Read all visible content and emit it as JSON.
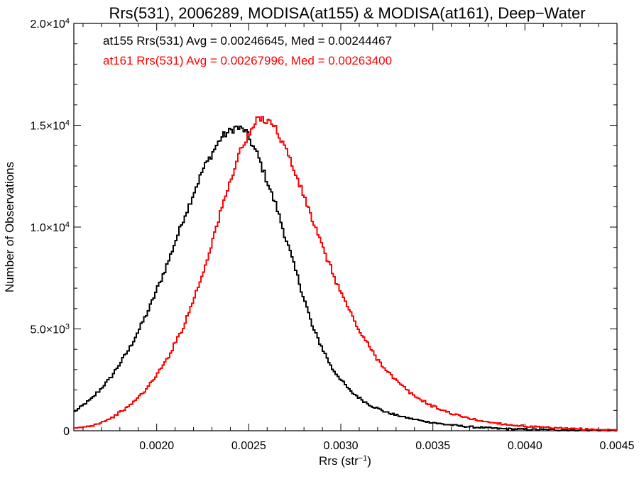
{
  "chart_data": {
    "type": "line",
    "title": "Rrs(531), 2006289, MODISA(at155) & MODISA(at161), Deep−Water",
    "xlabel_base": "Rrs (str",
    "xlabel_sup": "−1",
    "xlabel_close": ")",
    "ylabel": "Number of Observations",
    "xlim": [
      0.00155,
      0.0045
    ],
    "ylim": [
      0,
      20000
    ],
    "xticks": [
      {
        "value": 0.002,
        "label": "0.0020"
      },
      {
        "value": 0.0025,
        "label": "0.0025"
      },
      {
        "value": 0.003,
        "label": "0.0030"
      },
      {
        "value": 0.0035,
        "label": "0.0035"
      },
      {
        "value": 0.004,
        "label": "0.0040"
      },
      {
        "value": 0.0045,
        "label": "0.0045"
      }
    ],
    "yticks": [
      {
        "value": 0,
        "mant": "0",
        "exp": ""
      },
      {
        "value": 5000,
        "mant": "5.0×10",
        "exp": "3"
      },
      {
        "value": 10000,
        "mant": "1.0×10",
        "exp": "4"
      },
      {
        "value": 15000,
        "mant": "1.5×10",
        "exp": "4"
      },
      {
        "value": 20000,
        "mant": "2.0×10",
        "exp": "4"
      }
    ],
    "series": [
      {
        "color": "#000000",
        "annotation": "at155 Rrs(531) Avg = 0.00246645, Med = 0.00244467",
        "points": [
          [
            0.00155,
            900
          ],
          [
            0.00165,
            1600
          ],
          [
            0.00175,
            2600
          ],
          [
            0.00185,
            4000
          ],
          [
            0.00195,
            5800
          ],
          [
            0.00205,
            8000
          ],
          [
            0.00215,
            10500
          ],
          [
            0.00225,
            12800
          ],
          [
            0.00235,
            14400
          ],
          [
            0.00243,
            14900
          ],
          [
            0.00248,
            14750
          ],
          [
            0.00255,
            13500
          ],
          [
            0.00265,
            11000
          ],
          [
            0.00275,
            8000
          ],
          [
            0.00285,
            5000
          ],
          [
            0.00295,
            3100
          ],
          [
            0.00305,
            1950
          ],
          [
            0.00315,
            1300
          ],
          [
            0.00325,
            900
          ],
          [
            0.00335,
            650
          ],
          [
            0.00345,
            470
          ],
          [
            0.00355,
            330
          ],
          [
            0.00365,
            230
          ],
          [
            0.00375,
            160
          ],
          [
            0.00385,
            110
          ],
          [
            0.00395,
            80
          ],
          [
            0.00405,
            60
          ],
          [
            0.00415,
            45
          ],
          [
            0.00425,
            35
          ],
          [
            0.00435,
            25
          ],
          [
            0.0045,
            20
          ]
        ]
      },
      {
        "color": "#ff0000",
        "annotation": "at161 Rrs(531) Avg = 0.00267996, Med = 0.00263400",
        "points": [
          [
            0.00155,
            100
          ],
          [
            0.00165,
            250
          ],
          [
            0.00175,
            600
          ],
          [
            0.00185,
            1200
          ],
          [
            0.00195,
            2100
          ],
          [
            0.00205,
            3400
          ],
          [
            0.00215,
            5200
          ],
          [
            0.00225,
            7700
          ],
          [
            0.00235,
            10800
          ],
          [
            0.00245,
            13700
          ],
          [
            0.00255,
            15300
          ],
          [
            0.00262,
            15250
          ],
          [
            0.0027,
            13900
          ],
          [
            0.0028,
            11500
          ],
          [
            0.0029,
            9000
          ],
          [
            0.003,
            6800
          ],
          [
            0.0031,
            4900
          ],
          [
            0.0032,
            3500
          ],
          [
            0.0033,
            2450
          ],
          [
            0.0034,
            1700
          ],
          [
            0.0035,
            1200
          ],
          [
            0.0036,
            850
          ],
          [
            0.0037,
            600
          ],
          [
            0.0038,
            430
          ],
          [
            0.0039,
            310
          ],
          [
            0.004,
            220
          ],
          [
            0.0041,
            160
          ],
          [
            0.0042,
            115
          ],
          [
            0.0043,
            80
          ],
          [
            0.0044,
            55
          ],
          [
            0.0045,
            40
          ]
        ]
      }
    ]
  }
}
